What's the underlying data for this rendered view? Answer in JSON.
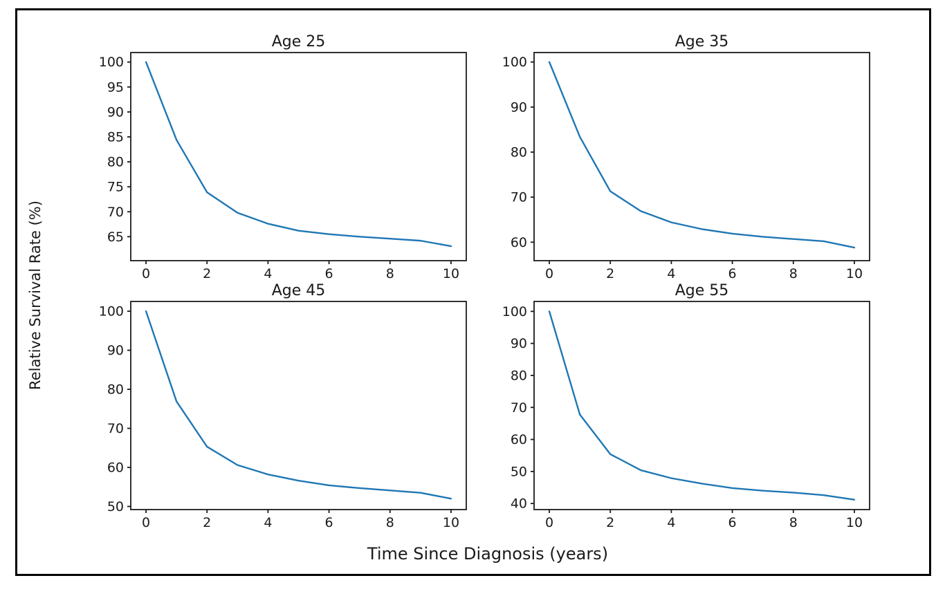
{
  "figure": {
    "shared_xlabel": "Time Since Diagnosis (years)",
    "shared_ylabel": "Relative Survival Rate (%)",
    "line_color": "#1f77b4",
    "text_color": "#1a1a1a",
    "spine_color": "#1a1a1a",
    "border_color": "#000000",
    "background_color": "#ffffff"
  },
  "chart_data": [
    {
      "type": "line",
      "title": "Age 25",
      "x": [
        0,
        1,
        2,
        3,
        4,
        5,
        6,
        7,
        8,
        9,
        10
      ],
      "values": [
        100,
        84.4,
        73.9,
        69.8,
        67.6,
        66.2,
        65.5,
        65.0,
        64.6,
        64.2,
        63.1
      ],
      "xticks": [
        0,
        2,
        4,
        6,
        8,
        10
      ],
      "yticks": [
        65,
        70,
        75,
        80,
        85,
        90,
        95,
        100
      ],
      "xlim": [
        -0.5,
        10.5
      ],
      "ylim": [
        60.2,
        101.9
      ],
      "xlabel": "",
      "ylabel": "",
      "grid": false,
      "legend": null
    },
    {
      "type": "line",
      "title": "Age 35",
      "x": [
        0,
        1,
        2,
        3,
        4,
        5,
        6,
        7,
        8,
        9,
        10
      ],
      "values": [
        100,
        83.4,
        71.3,
        66.9,
        64.4,
        62.9,
        61.9,
        61.2,
        60.7,
        60.2,
        58.8
      ],
      "xticks": [
        0,
        2,
        4,
        6,
        8,
        10
      ],
      "yticks": [
        60,
        70,
        80,
        90,
        100
      ],
      "xlim": [
        -0.5,
        10.5
      ],
      "ylim": [
        55.9,
        102.1
      ],
      "xlabel": "",
      "ylabel": "",
      "grid": false,
      "legend": null
    },
    {
      "type": "line",
      "title": "Age 45",
      "x": [
        0,
        1,
        2,
        3,
        4,
        5,
        6,
        7,
        8,
        9,
        10
      ],
      "values": [
        100,
        76.9,
        65.3,
        60.6,
        58.2,
        56.6,
        55.4,
        54.7,
        54.1,
        53.5,
        52.0
      ],
      "xticks": [
        0,
        2,
        4,
        6,
        8,
        10
      ],
      "yticks": [
        50,
        60,
        70,
        80,
        90,
        100
      ],
      "xlim": [
        -0.5,
        10.5
      ],
      "ylim": [
        49.2,
        102.5
      ],
      "xlabel": "",
      "ylabel": "",
      "grid": false,
      "legend": null
    },
    {
      "type": "line",
      "title": "Age 55",
      "x": [
        0,
        1,
        2,
        3,
        4,
        5,
        6,
        7,
        8,
        9,
        10
      ],
      "values": [
        100,
        67.8,
        55.4,
        50.4,
        47.9,
        46.2,
        44.8,
        44.0,
        43.4,
        42.6,
        41.2
      ],
      "xticks": [
        0,
        2,
        4,
        6,
        8,
        10
      ],
      "yticks": [
        40,
        50,
        60,
        70,
        80,
        90,
        100
      ],
      "xlim": [
        -0.5,
        10.5
      ],
      "ylim": [
        38.1,
        103.1
      ],
      "xlabel": "",
      "ylabel": "",
      "grid": false,
      "legend": null
    }
  ]
}
